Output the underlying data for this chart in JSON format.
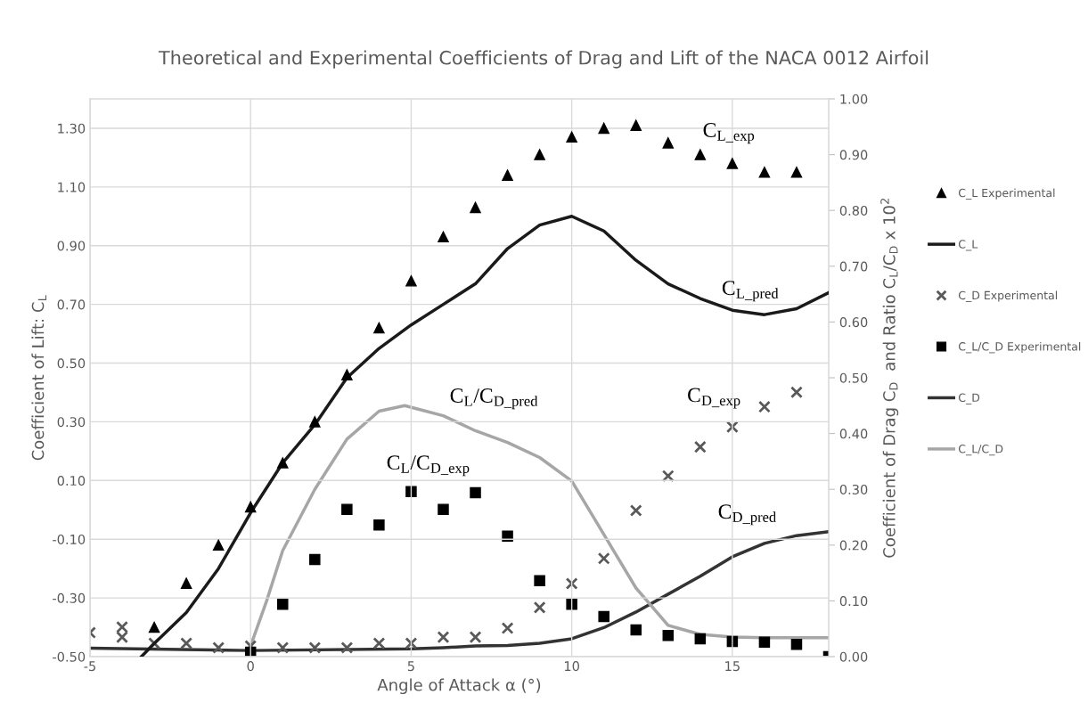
{
  "chart_data": {
    "type": "scatter",
    "title": "Theoretical and Experimental Coefficients of Drag and Lift of the NACA 0012 Airfoil",
    "xlabel": "Angle of Attack α (°)",
    "ylabel": "Coefficient of Lift: C$_{L}$",
    "y2label": "Coefficient of Drag C$_{D}$  and Ratio C$_{L}$/C$_{D}$ x 10$^{2}$",
    "xlim": [
      -5,
      18
    ],
    "xticks": [
      -5,
      0,
      5,
      10,
      15
    ],
    "ylim": [
      -0.5,
      1.4
    ],
    "yticks": [
      {
        "value": -0.5,
        "label": "-0.50"
      },
      {
        "value": -0.3,
        "label": "-0.30"
      },
      {
        "value": -0.1,
        "label": "-0.10"
      },
      {
        "value": 0.1,
        "label": "0.10"
      },
      {
        "value": 0.3,
        "label": "0.30"
      },
      {
        "value": 0.5,
        "label": "0.50"
      },
      {
        "value": 0.7,
        "label": "0.70"
      },
      {
        "value": 0.9,
        "label": "0.90"
      },
      {
        "value": 1.1,
        "label": "1.10"
      },
      {
        "value": 1.3,
        "label": "1.30"
      }
    ],
    "y2lim": [
      0,
      1
    ],
    "y2ticks": [
      {
        "value": 0,
        "label": "0.00"
      },
      {
        "value": 0.1,
        "label": "0.10"
      },
      {
        "value": 0.2,
        "label": "0.20"
      },
      {
        "value": 0.3,
        "label": "0.30"
      },
      {
        "value": 0.4,
        "label": "0.40"
      },
      {
        "value": 0.5,
        "label": "0.50"
      },
      {
        "value": 0.6,
        "label": "0.60"
      },
      {
        "value": 0.7,
        "label": "0.70"
      },
      {
        "value": 0.8,
        "label": "0.80"
      },
      {
        "value": 0.9,
        "label": "0.90"
      },
      {
        "value": 1.0,
        "label": "1.00"
      }
    ],
    "grid": true,
    "legend": "right",
    "series": [
      {
        "name": "C_L Experimental",
        "marker": "triangle",
        "color": "#000000",
        "x": [
          -3,
          -2,
          -1,
          0,
          1,
          2,
          3,
          4,
          5,
          6,
          7,
          8,
          9,
          10,
          11,
          12,
          13,
          14,
          15,
          16,
          17
        ],
        "values": [
          -0.4,
          -0.25,
          -0.12,
          0.01,
          0.16,
          0.3,
          0.46,
          0.62,
          0.78,
          0.93,
          1.03,
          1.14,
          1.21,
          1.27,
          1.3,
          1.31,
          1.25,
          1.21,
          1.18,
          1.15,
          1.15
        ]
      },
      {
        "name": "C_L",
        "type": "line",
        "color": "#1a1a1a",
        "x": [
          -3.4,
          -3,
          -2,
          -1,
          -0.5,
          0,
          1,
          2,
          3,
          4,
          5,
          6,
          7,
          8,
          9,
          10,
          11,
          12,
          13,
          14,
          15,
          16,
          17,
          18
        ],
        "values": [
          -0.5,
          -0.455,
          -0.35,
          -0.2,
          -0.105,
          -0.01,
          0.16,
          0.29,
          0.45,
          0.55,
          0.63,
          0.7,
          0.77,
          0.89,
          0.97,
          1.0,
          0.95,
          0.85,
          0.77,
          0.72,
          0.68,
          0.665,
          0.685,
          0.74
        ]
      },
      {
        "name": "C_D Experimental",
        "marker": "cross",
        "color": "#595959",
        "axis": "y2",
        "x": [
          -5,
          -4,
          -4,
          -3,
          -2,
          -1,
          0,
          1,
          2,
          3,
          4,
          5,
          6,
          7,
          8,
          9,
          10,
          11,
          12,
          13,
          14,
          15,
          16,
          17
        ],
        "values": [
          0.043,
          0.053,
          0.035,
          0.024,
          0.024,
          0.016,
          0.019,
          0.016,
          0.016,
          0.016,
          0.024,
          0.024,
          0.035,
          0.035,
          0.051,
          0.088,
          0.131,
          0.176,
          0.262,
          0.324,
          0.376,
          0.412,
          0.448,
          0.474
        ]
      },
      {
        "name": "C_L/C_D Experimental",
        "marker": "square",
        "color": "#000000",
        "axis": "y2",
        "x": [
          0,
          1,
          2,
          3,
          4,
          5,
          6,
          7,
          8,
          9,
          10,
          11,
          12,
          13,
          14,
          15,
          16,
          17,
          18
        ],
        "values": [
          0.008,
          0.094,
          0.174,
          0.264,
          0.236,
          0.296,
          0.264,
          0.294,
          0.216,
          0.136,
          0.094,
          0.072,
          0.048,
          0.038,
          0.032,
          0.027,
          0.026,
          0.022,
          0.0
        ]
      },
      {
        "name": "C_D",
        "type": "line",
        "color": "#333333",
        "axis": "y2",
        "x": [
          -5,
          0,
          5,
          6,
          7,
          8,
          9,
          10,
          11,
          12,
          13,
          14,
          15,
          16,
          17,
          18
        ],
        "values": [
          0.015,
          0.011,
          0.014,
          0.016,
          0.019,
          0.02,
          0.024,
          0.032,
          0.052,
          0.08,
          0.112,
          0.144,
          0.179,
          0.203,
          0.217,
          0.224
        ]
      },
      {
        "name": "C_L/C_D",
        "type": "line",
        "color": "#a6a6a6",
        "axis": "y2",
        "x": [
          0,
          0.5,
          1,
          2,
          3,
          4,
          4.8,
          6,
          7,
          8,
          9,
          10,
          11,
          12,
          13,
          14,
          15,
          16,
          17,
          18
        ],
        "values": [
          0.019,
          0.1,
          0.19,
          0.3,
          0.39,
          0.44,
          0.45,
          0.432,
          0.405,
          0.384,
          0.357,
          0.315,
          0.219,
          0.123,
          0.056,
          0.04,
          0.035,
          0.034,
          0.034,
          0.034
        ]
      }
    ],
    "annotations": [
      "C$_{L_exp}$",
      "C$_{L_pred}$",
      "C$_{L}$/C$_{D_pred}$",
      "C$_{L}$/C$_{D_exp}$",
      "C$_{D_exp}$",
      "C$_{D_pred}$"
    ]
  }
}
